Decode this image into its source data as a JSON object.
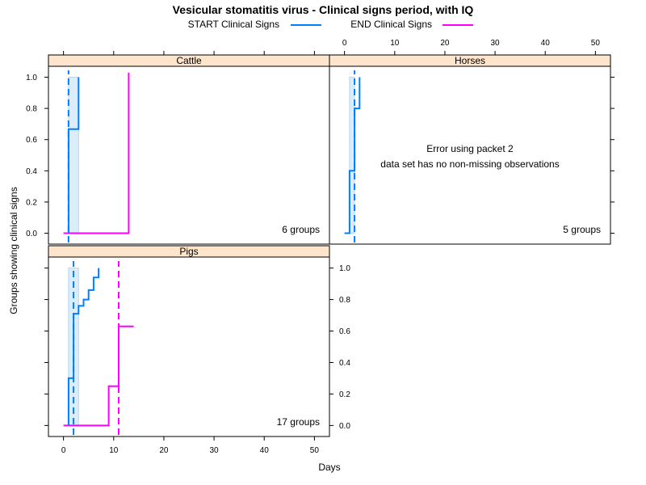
{
  "chart_data": {
    "type": "line",
    "title": "Vesicular stomatitis virus - Clinical signs period, with IQ",
    "xlabel": "Days",
    "ylabel": "Groups showing clinical signs",
    "xlim": [
      -3,
      53
    ],
    "ylim": [
      -0.07,
      1.07
    ],
    "x_ticks": [
      0,
      10,
      20,
      30,
      40,
      50
    ],
    "y_ticks": [
      0.0,
      0.2,
      0.4,
      0.6,
      0.8,
      1.0
    ],
    "x_tick_labels": [
      "0",
      "10",
      "20",
      "30",
      "40",
      "50"
    ],
    "y_tick_labels": [
      "0.0",
      "0.2",
      "0.4",
      "0.6",
      "0.8",
      "1.0"
    ],
    "legend": {
      "placement": "top",
      "entries": [
        {
          "label": "START Clinical Signs",
          "color": "#0080ff"
        },
        {
          "label": "END Clinical Signs",
          "color": "#ff00ff"
        }
      ]
    },
    "colors": {
      "start": "#0080ff",
      "end": "#ff00ff",
      "iq_band": "#cfe6f8",
      "strip": "#ffe5cc"
    },
    "panels": [
      {
        "name": "Cattle",
        "count_label": "6 groups",
        "note": [],
        "start_series": [
          [
            1,
            0
          ],
          [
            1,
            0.667
          ],
          [
            3,
            0.667
          ],
          [
            3,
            1.0
          ]
        ],
        "end_series": [
          [
            0,
            0
          ],
          [
            13,
            0
          ],
          [
            13,
            1.03
          ]
        ],
        "start_median": 1,
        "end_median": null,
        "iq_start": [
          1,
          3
        ]
      },
      {
        "name": "Horses",
        "count_label": "5 groups",
        "note": [
          "Error using packet 2",
          "data set has no non-missing observations"
        ],
        "start_series": [
          [
            0,
            0
          ],
          [
            1,
            0
          ],
          [
            1,
            0.4
          ],
          [
            2,
            0.4
          ],
          [
            2,
            0.8
          ],
          [
            3,
            0.8
          ],
          [
            3,
            1.0
          ]
        ],
        "end_series": [],
        "start_median": 2,
        "end_median": null,
        "iq_start": [
          1,
          2
        ]
      },
      {
        "name": "Pigs",
        "count_label": "17 groups",
        "note": [],
        "start_series": [
          [
            1,
            0
          ],
          [
            1,
            0.3
          ],
          [
            2,
            0.3
          ],
          [
            2,
            0.71
          ],
          [
            3,
            0.71
          ],
          [
            3,
            0.76
          ],
          [
            4,
            0.76
          ],
          [
            4,
            0.8
          ],
          [
            5,
            0.8
          ],
          [
            5,
            0.86
          ],
          [
            6,
            0.86
          ],
          [
            6,
            0.94
          ],
          [
            7,
            0.94
          ],
          [
            7,
            1.0
          ]
        ],
        "end_series": [
          [
            0,
            0
          ],
          [
            9,
            0
          ],
          [
            9,
            0.25
          ],
          [
            11,
            0.25
          ],
          [
            11,
            0.63
          ],
          [
            14,
            0.63
          ]
        ],
        "start_median": 2,
        "end_median": 11,
        "iq_start": [
          1,
          3
        ]
      }
    ]
  }
}
